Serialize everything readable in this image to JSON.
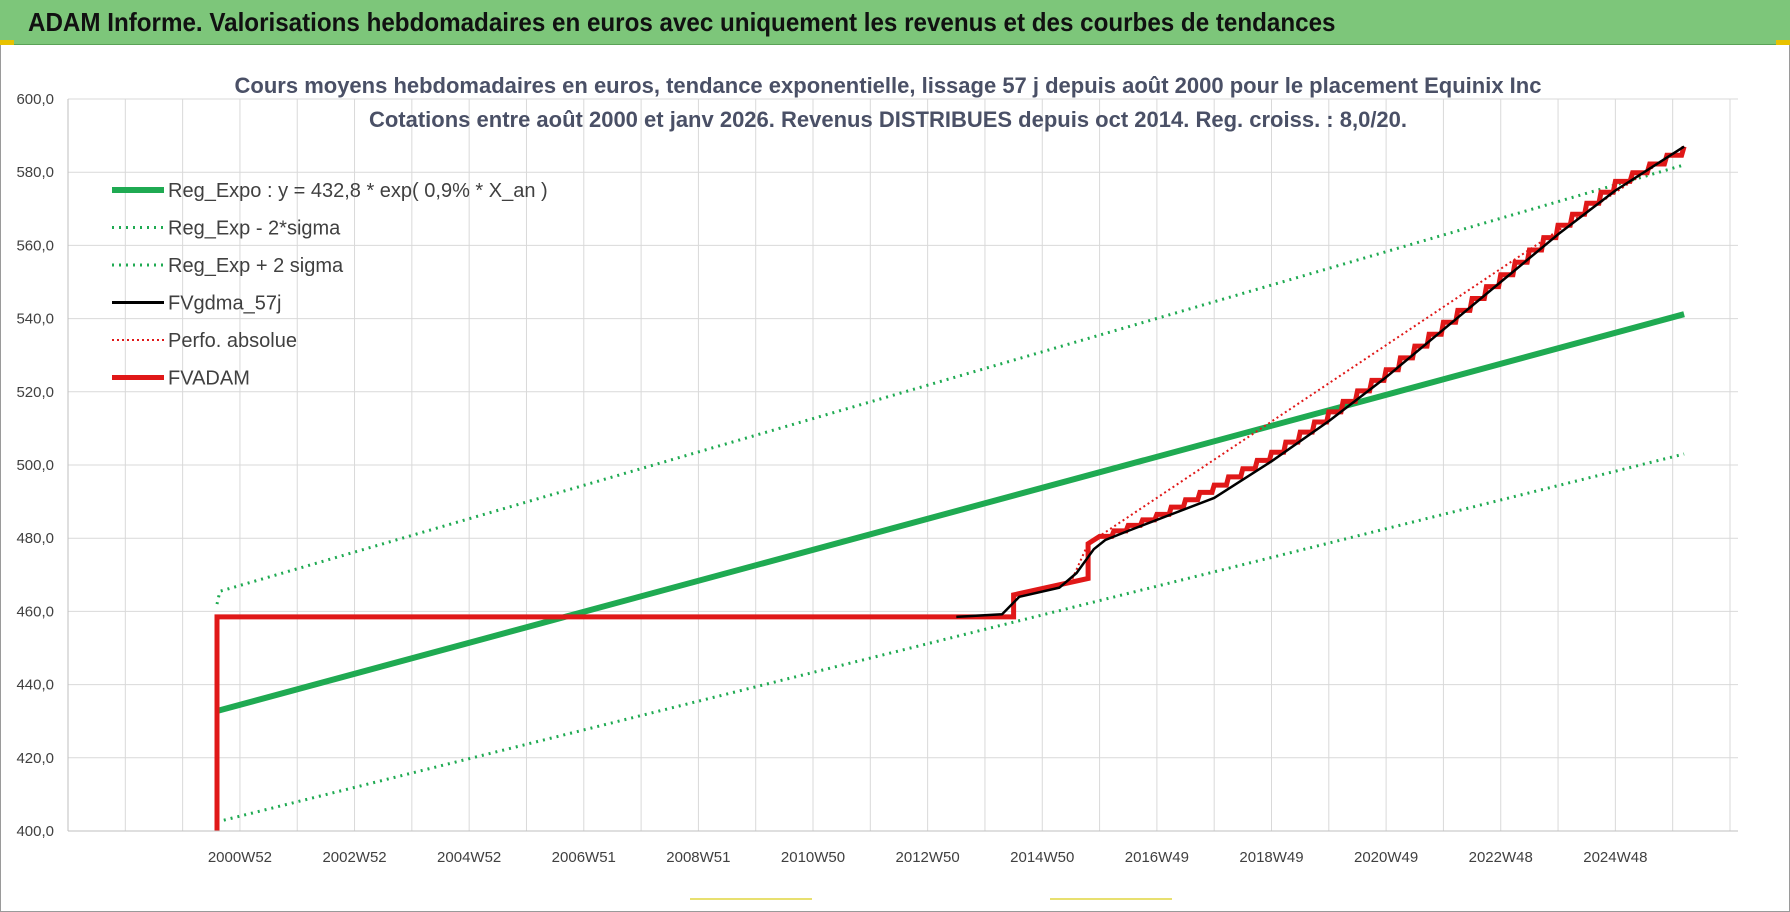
{
  "banner": {
    "title": "ADAM Informe. Valorisations hebdomadaires en euros avec uniquement les revenus et des courbes de tendances"
  },
  "colors": {
    "banner_bg": "#7dc67a",
    "reg_expo": "#1faa52",
    "sigma": "#1faa52",
    "fvgdma": "#000000",
    "perfo": "#e01818",
    "fvadam": "#e01818",
    "grid": "#d9d9d9"
  },
  "chart_data": {
    "type": "line",
    "title_line1": "Cours moyens hebdomadaires en euros, tendance exponentielle, lissage 57 j depuis août 2000 pour le placement Equinix Inc",
    "title_line2": "Cotations entre août 2000 et janv 2026. Revenus DISTRIBUES depuis oct 2014. Reg. croiss. : 8,0/20.",
    "y_ticks": [
      "400,0",
      "420,0",
      "440,0",
      "460,0",
      "480,0",
      "500,0",
      "520,0",
      "540,0",
      "560,0",
      "580,0",
      "600,0"
    ],
    "ylim": [
      400,
      600
    ],
    "x_ticks": [
      "2000W52",
      "2002W52",
      "2004W52",
      "2006W51",
      "2008W51",
      "2010W50",
      "2012W50",
      "2014W50",
      "2016W49",
      "2018W49",
      "2020W49",
      "2022W48",
      "2024W48"
    ],
    "x_tick_years": [
      2001,
      2003,
      2005,
      2007,
      2009,
      2011,
      2013,
      2015,
      2017,
      2019,
      2021,
      2023,
      2025
    ],
    "x_range_years": [
      1998.0,
      2027.14
    ],
    "grid": true,
    "legend_position": "top-left",
    "series": [
      {
        "name": "Reg_Expo : y = 432,8 * exp( 0,9% *  X_an )",
        "style": "solid-thick",
        "color": "#1faa52",
        "x": [
          2000.6,
          2026.2
        ],
        "y": [
          432.8,
          541.2
        ]
      },
      {
        "name": "Reg_Exp - 2*sigma",
        "style": "dotted",
        "color": "#1faa52",
        "x": [
          2000.6,
          2026.2
        ],
        "y": [
          402.5,
          503.0
        ]
      },
      {
        "name": "Reg_Exp + 2 sigma",
        "style": "dotted",
        "color": "#1faa52",
        "x": [
          2000.6,
          2000.65,
          2026.2
        ],
        "y": [
          462.0,
          465.5,
          582.0
        ]
      },
      {
        "name": "FVgdma_57j",
        "style": "solid",
        "color": "#000000",
        "x": [
          2013.5,
          2014.3,
          2014.6,
          2015.3,
          2015.6,
          2015.9,
          2016.1,
          2016.5,
          2018.0,
          2019.0,
          2020.0,
          2021.0,
          2022.0,
          2023.0,
          2024.0,
          2025.0,
          2026.2
        ],
        "y": [
          458.5,
          459.2,
          464.0,
          466.5,
          470.5,
          477.0,
          479.5,
          482.0,
          491.0,
          501.0,
          512.0,
          524.0,
          537.0,
          550.0,
          563.0,
          575.0,
          587.0
        ]
      },
      {
        "name": "Perfo. absolue",
        "style": "dotted",
        "color": "#e01818",
        "x": [
          2000.6,
          2000.6,
          2014.5,
          2014.5,
          2015.5,
          2015.8,
          2026.2
        ],
        "y": [
          400.0,
          458.5,
          458.5,
          464.5,
          468.0,
          478.5,
          587.0
        ]
      },
      {
        "name": "FVADAM",
        "style": "step-thick",
        "color": "#e01818",
        "x": [
          2000.6,
          2000.6,
          2014.5,
          2014.5,
          2015.8,
          2015.8,
          2016.0,
          2017.0,
          2018.0,
          2019.0,
          2020.0,
          2021.0,
          2022.0,
          2023.0,
          2024.0,
          2025.0,
          2026.2
        ],
        "y": [
          400.0,
          458.5,
          458.5,
          464.5,
          469.0,
          478.5,
          480.5,
          486.5,
          494.5,
          503.5,
          514.5,
          526.0,
          539.0,
          552.0,
          565.5,
          577.5,
          587.0
        ]
      }
    ]
  }
}
